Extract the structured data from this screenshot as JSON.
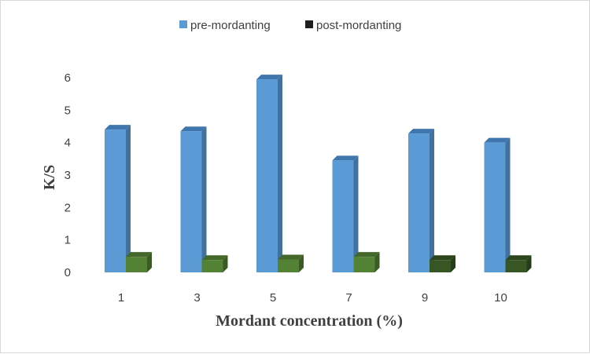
{
  "chart_data": {
    "type": "bar",
    "title": "",
    "xlabel": "Mordant concentration (%)",
    "ylabel": "K/S",
    "categories": [
      "1",
      "3",
      "5",
      "7",
      "9",
      "10"
    ],
    "ylim": [
      0,
      6
    ],
    "yticks": [
      "0",
      "1",
      "2",
      "3",
      "4",
      "5",
      "6"
    ],
    "grid": false,
    "legend_position": "top",
    "series": [
      {
        "name": "pre-mordanting",
        "values": [
          4.4,
          4.35,
          5.95,
          3.45,
          4.28,
          4.0
        ],
        "color": "#5b9bd5",
        "side_color": "#41719c",
        "top_color": "#3f76ae"
      },
      {
        "name": "post-mordanting",
        "values": [
          0.48,
          0.38,
          0.4,
          0.48,
          0.38,
          0.38
        ],
        "colors": [
          "#548235",
          "#548235",
          "#548235",
          "#548235",
          "#375623",
          "#375623"
        ],
        "legend_color": "#1f1f1f"
      }
    ]
  }
}
